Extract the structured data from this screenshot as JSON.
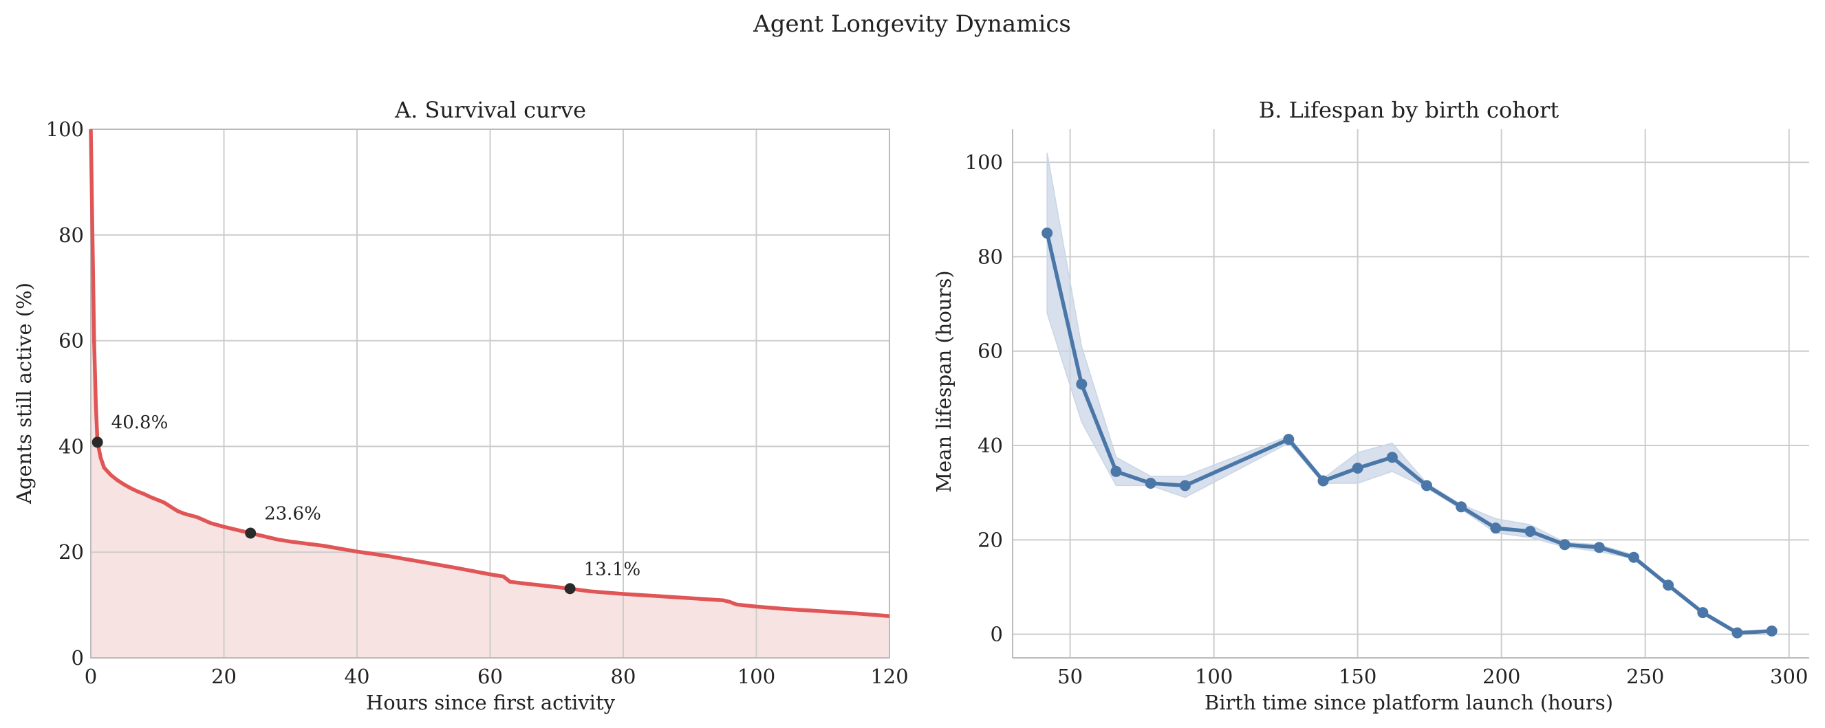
{
  "figure": {
    "title": "Agent Longevity Dynamics"
  },
  "colors": {
    "survival_line": "#e05555",
    "survival_fill": "#f8e3e3",
    "cohort_line": "#4a76a8",
    "cohort_band": "#c9d6e6",
    "marker": "#2a2a2a",
    "grid": "#cccccc",
    "axis": "#bbbbbb"
  },
  "chart_data": [
    {
      "type": "area",
      "title": "A. Survival curve",
      "xlabel": "Hours since first activity",
      "ylabel": "Agents still active (%)",
      "xlim": [
        0,
        120
      ],
      "ylim": [
        0,
        100
      ],
      "xticks": [
        0,
        20,
        40,
        60,
        80,
        100,
        120
      ],
      "yticks": [
        0,
        20,
        40,
        60,
        80,
        100
      ],
      "grid": true,
      "series": [
        {
          "name": "survival",
          "x": [
            0,
            0.25,
            0.5,
            0.75,
            1,
            1.5,
            2,
            3,
            4,
            5,
            6,
            7,
            8,
            9,
            10,
            11,
            12,
            13,
            14,
            16,
            18,
            20,
            22,
            24,
            26,
            28,
            30,
            35,
            40,
            45,
            50,
            55,
            60,
            62,
            63,
            65,
            70,
            72,
            75,
            80,
            85,
            90,
            95,
            96,
            97,
            100,
            105,
            110,
            115,
            120
          ],
          "y": [
            100,
            80,
            60,
            48,
            40.8,
            37.8,
            36,
            34.6,
            33.6,
            32.8,
            32.1,
            31.5,
            31,
            30.4,
            29.9,
            29.4,
            28.6,
            27.8,
            27.3,
            26.6,
            25.5,
            24.8,
            24.2,
            23.6,
            23,
            22.4,
            22,
            21.2,
            20.1,
            19.2,
            18.1,
            17,
            15.8,
            15.4,
            14.4,
            14.1,
            13.4,
            13.1,
            12.6,
            12.1,
            11.7,
            11.3,
            10.9,
            10.6,
            10.1,
            9.7,
            9.2,
            8.8,
            8.4,
            7.9
          ]
        }
      ],
      "highlights": [
        {
          "x": 1,
          "y": 40.8,
          "label": "40.8%"
        },
        {
          "x": 24,
          "y": 23.6,
          "label": "23.6%"
        },
        {
          "x": 72,
          "y": 13.1,
          "label": "13.1%"
        }
      ]
    },
    {
      "type": "line",
      "title": "B. Lifespan by birth cohort",
      "xlabel": "Birth time since platform launch (hours)",
      "ylabel": "Mean lifespan (hours)",
      "xlim": [
        30,
        307
      ],
      "ylim": [
        -5,
        107
      ],
      "xticks": [
        50,
        100,
        150,
        200,
        250,
        300
      ],
      "yticks": [
        0,
        20,
        40,
        60,
        80,
        100
      ],
      "grid": true,
      "series": [
        {
          "name": "mean lifespan",
          "x": [
            42,
            54,
            66,
            78,
            90,
            126,
            138,
            150,
            162,
            174,
            186,
            198,
            210,
            222,
            234,
            246,
            258,
            270,
            282,
            294
          ],
          "y": [
            85,
            53,
            34.5,
            32,
            31.5,
            41.3,
            32.5,
            35.2,
            37.5,
            31.5,
            27,
            22.5,
            21.8,
            19,
            18.4,
            16.3,
            10.4,
            4.6,
            0.3,
            0.7
          ],
          "lower": [
            68,
            45,
            31.5,
            31.5,
            29,
            40.5,
            32,
            32,
            34.5,
            31,
            26.5,
            21.5,
            20.5,
            18.5,
            17.5,
            16,
            10.3,
            4.5,
            0.2,
            0.6
          ],
          "upper": [
            102,
            61,
            37.5,
            33.5,
            33.5,
            42,
            33,
            38.5,
            40.5,
            32,
            27.5,
            24.5,
            23.2,
            19.5,
            19,
            16.8,
            10.5,
            4.7,
            0.4,
            0.8
          ]
        }
      ]
    }
  ]
}
